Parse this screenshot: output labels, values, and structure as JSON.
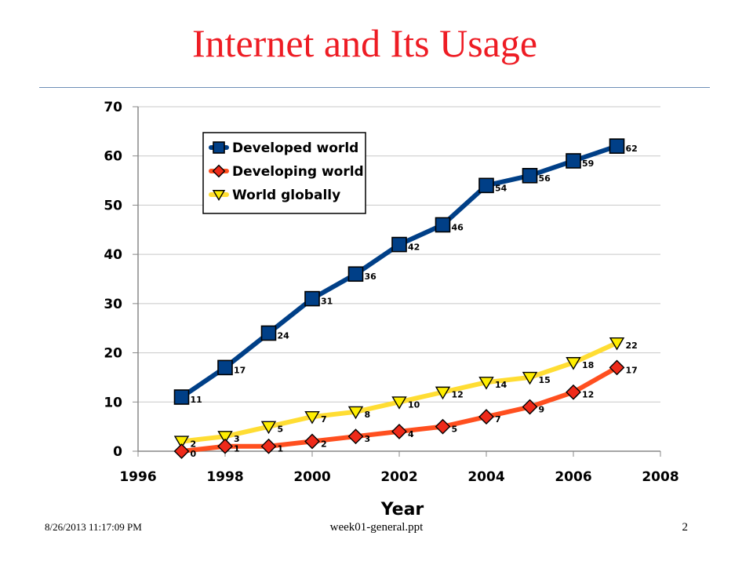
{
  "slide": {
    "title": "Internet and Its Usage",
    "footer_date": "8/26/2013 11:17:09 PM",
    "footer_file": "week01-general.ppt",
    "page_number": "2"
  },
  "chart_data": {
    "type": "line",
    "title": "",
    "xlabel": "Year",
    "ylabel": "",
    "xlim": [
      1996,
      2008
    ],
    "ylim": [
      0,
      70
    ],
    "xticks": [
      1996,
      1998,
      2000,
      2002,
      2004,
      2006,
      2008
    ],
    "yticks": [
      0,
      10,
      20,
      30,
      40,
      50,
      60,
      70
    ],
    "grid": true,
    "legend": "top-left",
    "x": [
      1997,
      1998,
      1999,
      2000,
      2001,
      2002,
      2003,
      2004,
      2005,
      2006,
      2007
    ],
    "series": [
      {
        "name": "Developed world",
        "marker": "square",
        "color": "#003f87",
        "values": [
          11,
          17,
          24,
          31,
          36,
          42,
          46,
          54,
          56,
          59,
          62
        ]
      },
      {
        "name": "Developing world",
        "marker": "diamond",
        "color": "#ff4f1f",
        "marker_color": "#ee2a1a",
        "values": [
          0,
          1,
          1,
          2,
          3,
          4,
          5,
          7,
          9,
          12,
          17
        ]
      },
      {
        "name": "World globally",
        "marker": "triangle-down",
        "color": "#ffdd33",
        "marker_color": "#ffee00",
        "values": [
          2,
          3,
          5,
          7,
          8,
          10,
          12,
          14,
          15,
          18,
          22
        ]
      }
    ]
  }
}
